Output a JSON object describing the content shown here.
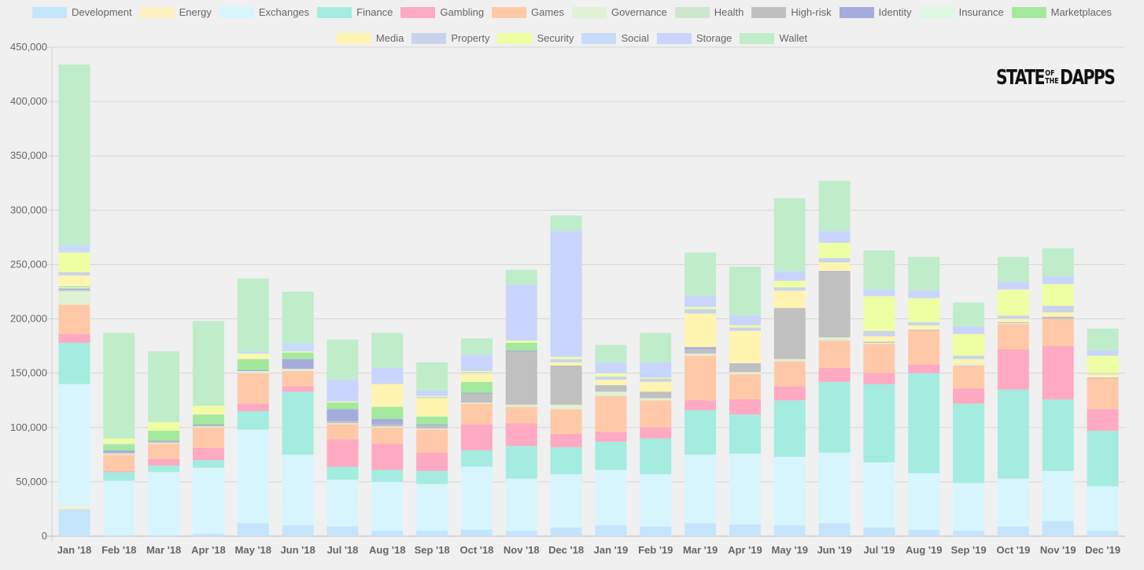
{
  "logo": {
    "text_1": "STATE",
    "text_of": "OF",
    "text_the": "THE",
    "text_2": "DAPPS"
  },
  "chart_data": {
    "type": "bar",
    "stacked": true,
    "legend_position": "top",
    "grid": true,
    "ylim": [
      0,
      450000
    ],
    "yticks": [
      0,
      50000,
      100000,
      150000,
      200000,
      250000,
      300000,
      350000,
      400000,
      450000
    ],
    "ytick_labels": [
      "0",
      "50,000",
      "100,000",
      "150,000",
      "200,000",
      "250,000",
      "300,000",
      "350,000",
      "400,000",
      "450,000"
    ],
    "categories": [
      "Jan '18",
      "Feb '18",
      "Mar '18",
      "Apr '18",
      "May '18",
      "Jun '18",
      "Jul '18",
      "Aug '18",
      "Sep '18",
      "Oct '18",
      "Nov '18",
      "Dec '18",
      "Jan '19",
      "Feb '19",
      "Mar '19",
      "Apr '19",
      "May '19",
      "Jun '19",
      "Jul '19",
      "Aug '19",
      "Sep '19",
      "Oct '19",
      "Nov '19",
      "Dec '19"
    ],
    "series": [
      {
        "name": "Development",
        "color": "#c4e4fb",
        "values": [
          25000,
          1000,
          1000,
          2000,
          12000,
          10000,
          9000,
          5000,
          5000,
          6000,
          5000,
          8000,
          10000,
          9000,
          12000,
          11000,
          10000,
          12000,
          8000,
          6000,
          5000,
          9000,
          14000,
          5000
        ]
      },
      {
        "name": "Energy",
        "color": "#fff0c0",
        "values": [
          2000,
          0,
          0,
          0,
          0,
          0,
          0,
          0,
          0,
          0,
          0,
          0,
          0,
          0,
          0,
          0,
          0,
          0,
          0,
          0,
          0,
          0,
          0,
          0
        ]
      },
      {
        "name": "Exchanges",
        "color": "#d7f5fd",
        "values": [
          113000,
          50000,
          58000,
          61000,
          86000,
          65000,
          43000,
          45000,
          43000,
          58000,
          48000,
          49000,
          51000,
          48000,
          63000,
          65000,
          63000,
          65000,
          60000,
          52000,
          44000,
          44000,
          46000,
          41000
        ]
      },
      {
        "name": "Finance",
        "color": "#a4ecdf",
        "values": [
          38000,
          8000,
          6000,
          7000,
          17000,
          58000,
          12000,
          11000,
          12000,
          15000,
          30000,
          25000,
          26000,
          33000,
          41000,
          36000,
          52000,
          65000,
          72000,
          92000,
          73000,
          82000,
          66000,
          51000
        ]
      },
      {
        "name": "Gambling",
        "color": "#ffa9c2",
        "values": [
          8000,
          1000,
          6000,
          11000,
          7000,
          5000,
          25000,
          24000,
          17000,
          24000,
          21000,
          12000,
          9000,
          10000,
          9000,
          14000,
          13000,
          13000,
          10000,
          8000,
          14000,
          37000,
          49000,
          20000
        ]
      },
      {
        "name": "Games",
        "color": "#ffc9a8",
        "values": [
          27000,
          15000,
          14000,
          19000,
          28000,
          14000,
          14000,
          15000,
          21000,
          19000,
          15000,
          23000,
          33000,
          25000,
          41000,
          23000,
          23000,
          25000,
          27000,
          31000,
          21000,
          23000,
          25000,
          28000
        ]
      },
      {
        "name": "Governance",
        "color": "#e1f1d4",
        "values": [
          12000,
          1000,
          1000,
          1000,
          2000,
          2000,
          1000,
          1000,
          1000,
          1000,
          2000,
          4000,
          4000,
          2000,
          2000,
          2000,
          2000,
          3000,
          1000,
          0,
          2000,
          1000,
          0,
          0
        ]
      },
      {
        "name": "Health",
        "color": "#cde7cf",
        "values": [
          1000,
          0,
          0,
          0,
          0,
          0,
          0,
          0,
          0,
          0,
          0,
          0,
          0,
          0,
          0,
          0,
          0,
          0,
          0,
          0,
          0,
          0,
          0,
          0
        ]
      },
      {
        "name": "High-risk",
        "color": "#c0c0c0",
        "values": [
          1000,
          1000,
          1000,
          1000,
          0,
          0,
          2000,
          2000,
          3000,
          8000,
          49000,
          36000,
          6000,
          6000,
          4000,
          7000,
          47000,
          60000,
          1000,
          1000,
          0,
          1000,
          2000,
          1000
        ]
      },
      {
        "name": "Identity",
        "color": "#a4acdc",
        "values": [
          1000,
          2000,
          1000,
          1000,
          1000,
          9000,
          11000,
          5000,
          1000,
          1000,
          1000,
          0,
          0,
          0,
          2000,
          1000,
          0,
          1000,
          0,
          0,
          0,
          0,
          0,
          0
        ]
      },
      {
        "name": "Insurance",
        "color": "#dcf8e0",
        "values": [
          1000,
          0,
          0,
          0,
          0,
          0,
          0,
          0,
          0,
          0,
          0,
          0,
          0,
          0,
          0,
          0,
          0,
          0,
          0,
          0,
          0,
          0,
          0,
          0
        ]
      },
      {
        "name": "Marketplaces",
        "color": "#a3e99b",
        "values": [
          1000,
          5000,
          9000,
          9000,
          10000,
          6000,
          6000,
          11000,
          7000,
          10000,
          7000,
          0,
          0,
          0,
          0,
          0,
          0,
          0,
          0,
          0,
          0,
          0,
          0,
          0
        ]
      },
      {
        "name": "Media",
        "color": "#fff4b0",
        "values": [
          10000,
          0,
          0,
          3000,
          3000,
          1000,
          1000,
          21000,
          17000,
          8000,
          0,
          3000,
          5000,
          9000,
          31000,
          30000,
          16000,
          8000,
          5000,
          4000,
          4000,
          3000,
          4000,
          3000
        ]
      },
      {
        "name": "Property",
        "color": "#c9d4ea",
        "values": [
          3000,
          1000,
          0,
          0,
          0,
          0,
          0,
          1000,
          1000,
          1000,
          0,
          3000,
          3000,
          3000,
          4000,
          3000,
          3000,
          4000,
          5000,
          3000,
          3000,
          3000,
          6000,
          1000
        ]
      },
      {
        "name": "Security",
        "color": "#edffa2",
        "values": [
          18000,
          5000,
          8000,
          5000,
          2000,
          0,
          0,
          0,
          1000,
          1000,
          2000,
          2000,
          3000,
          1000,
          2000,
          2000,
          6000,
          14000,
          32000,
          22000,
          20000,
          24000,
          20000,
          16000
        ]
      },
      {
        "name": "Social",
        "color": "#c8dcfa",
        "values": [
          7000,
          0,
          0,
          0,
          2000,
          8000,
          0,
          0,
          0,
          0,
          0,
          0,
          0,
          0,
          0,
          0,
          0,
          0,
          0,
          0,
          0,
          0,
          0,
          0
        ]
      },
      {
        "name": "Storage",
        "color": "#c9d5fd",
        "values": [
          0,
          0,
          0,
          0,
          0,
          0,
          20000,
          14000,
          5000,
          15000,
          51000,
          116000,
          10000,
          14000,
          10000,
          9000,
          9000,
          11000,
          6000,
          7000,
          7000,
          7000,
          7000,
          5000
        ]
      },
      {
        "name": "Wallet",
        "color": "#bfecc9",
        "values": [
          166000,
          97000,
          65000,
          78000,
          67000,
          47000,
          37000,
          32000,
          26000,
          15000,
          14000,
          14000,
          16000,
          27000,
          40000,
          45000,
          67000,
          46000,
          36000,
          31000,
          22000,
          23000,
          26000,
          20000
        ]
      }
    ]
  }
}
